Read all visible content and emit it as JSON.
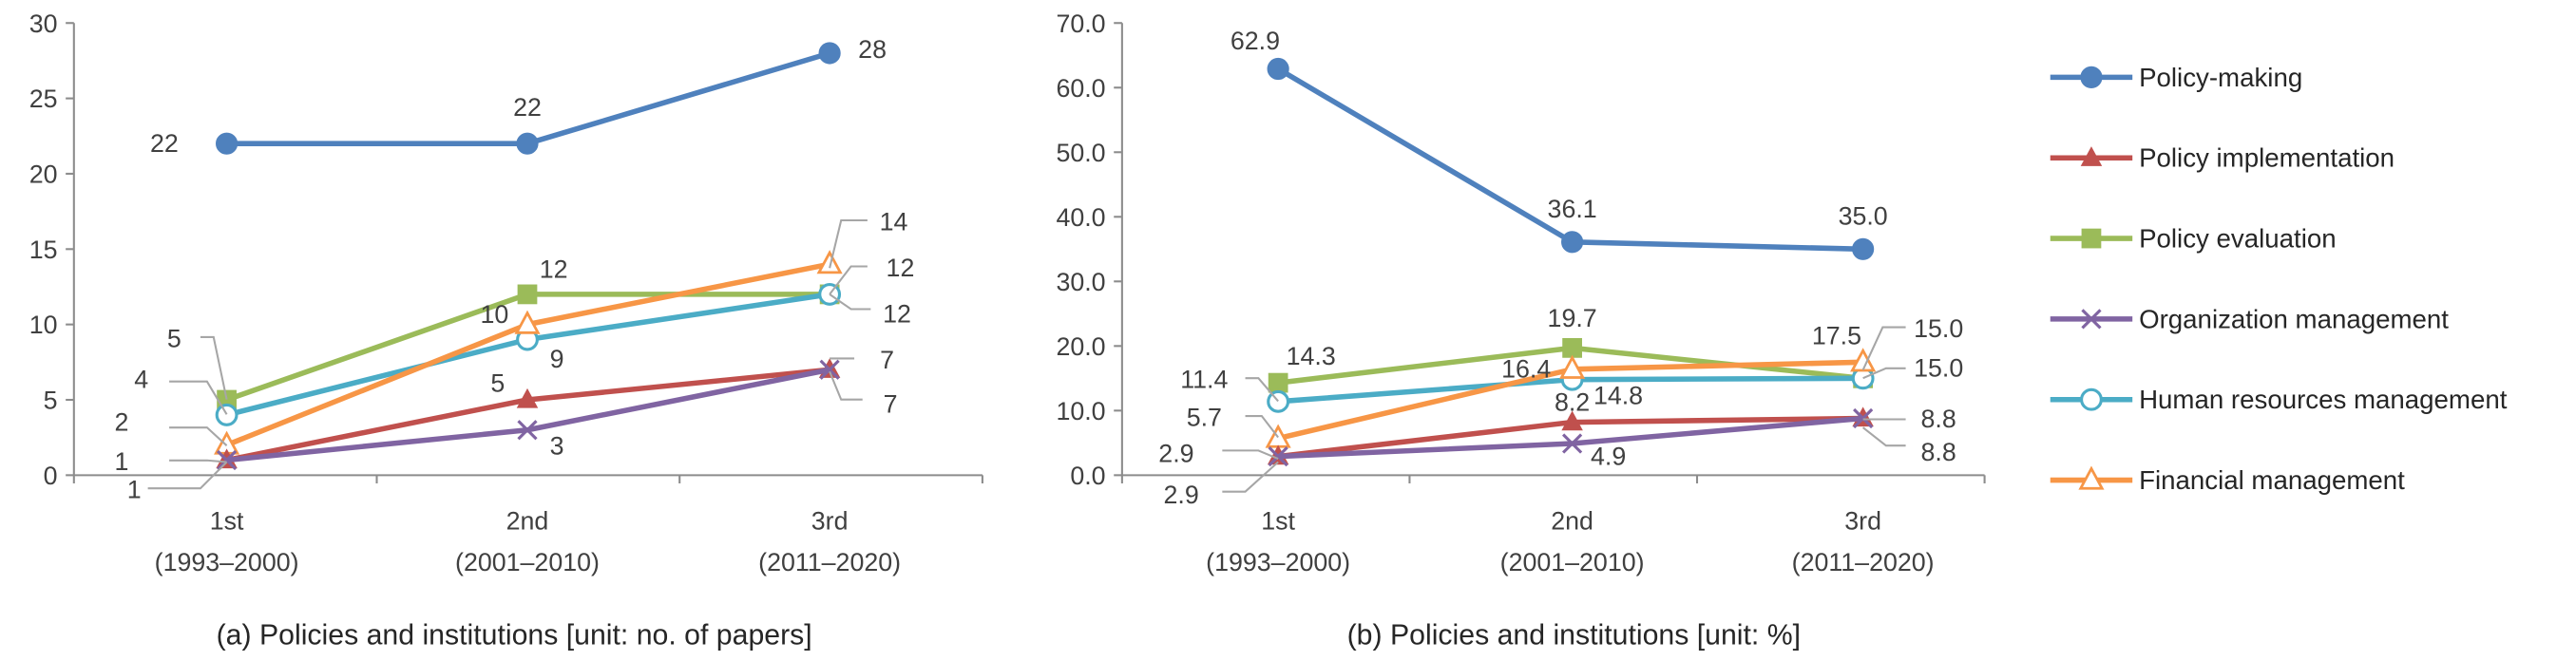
{
  "chart_data": [
    {
      "type": "line",
      "title": "(a) Policies and institutions [unit: no. of papers]",
      "categories": [
        {
          "line1": "1st",
          "line2": "(1993–2000)"
        },
        {
          "line1": "2nd",
          "line2": "(2001–2010)"
        },
        {
          "line1": "3rd",
          "line2": "(2011–2020)"
        }
      ],
      "ylim": [
        0,
        30
      ],
      "yticks": [
        "0",
        "5",
        "10",
        "15",
        "20",
        "25",
        "30"
      ],
      "series": [
        {
          "name": "Policy-making",
          "values": [
            22,
            22,
            28
          ],
          "labels": [
            "22",
            "22",
            "28"
          ]
        },
        {
          "name": "Policy implementation",
          "values": [
            1,
            5,
            7
          ],
          "labels": [
            "1",
            "5",
            "7"
          ]
        },
        {
          "name": "Policy evaluation",
          "values": [
            5,
            12,
            12
          ],
          "labels": [
            "5",
            "12",
            "12"
          ]
        },
        {
          "name": "Organization management",
          "values": [
            1,
            3,
            7
          ],
          "labels": [
            "1",
            "3",
            "7"
          ]
        },
        {
          "name": "Human resources management",
          "values": [
            4,
            9,
            12
          ],
          "labels": [
            "4",
            "9",
            "12"
          ]
        },
        {
          "name": "Financial management",
          "values": [
            2,
            10,
            14
          ],
          "labels": [
            "2",
            "10",
            "14"
          ]
        }
      ]
    },
    {
      "type": "line",
      "title": "(b) Policies and institutions [unit: %]",
      "categories": [
        {
          "line1": "1st",
          "line2": "(1993–2000)"
        },
        {
          "line1": "2nd",
          "line2": "(2001–2010)"
        },
        {
          "line1": "3rd",
          "line2": "(2011–2020)"
        }
      ],
      "ylim": [
        0,
        70
      ],
      "yticks": [
        "0.0",
        "10.0",
        "20.0",
        "30.0",
        "40.0",
        "50.0",
        "60.0",
        "70.0"
      ],
      "series": [
        {
          "name": "Policy-making",
          "values": [
            62.9,
            36.1,
            35.0
          ],
          "labels": [
            "62.9",
            "36.1",
            "35.0"
          ]
        },
        {
          "name": "Policy implementation",
          "values": [
            2.9,
            8.2,
            8.8
          ],
          "labels": [
            "2.9",
            "8.2",
            "8.8"
          ]
        },
        {
          "name": "Policy evaluation",
          "values": [
            14.3,
            19.7,
            15.0
          ],
          "labels": [
            "14.3",
            "19.7",
            "15.0"
          ]
        },
        {
          "name": "Organization management",
          "values": [
            2.9,
            4.9,
            8.8
          ],
          "labels": [
            "2.9",
            "4.9",
            "8.8"
          ]
        },
        {
          "name": "Human resources management",
          "values": [
            11.4,
            14.8,
            15.0
          ],
          "labels": [
            "11.4",
            "14.8",
            "15.0"
          ]
        },
        {
          "name": "Financial management",
          "values": [
            5.7,
            16.4,
            17.5
          ],
          "labels": [
            "5.7",
            "16.4",
            "17.5"
          ]
        }
      ]
    }
  ],
  "legend": [
    {
      "name": "Policy-making",
      "color": "#4f81bd",
      "marker": "circle-filled"
    },
    {
      "name": "Policy implementation",
      "color": "#c0504d",
      "marker": "triangle-filled"
    },
    {
      "name": "Policy evaluation",
      "color": "#9bbb59",
      "marker": "square-filled"
    },
    {
      "name": "Organization management",
      "color": "#8064a2",
      "marker": "x"
    },
    {
      "name": "Human resources management",
      "color": "#4bacc6",
      "marker": "circle-open"
    },
    {
      "name": "Financial management",
      "color": "#f79646",
      "marker": "triangle-open"
    }
  ]
}
